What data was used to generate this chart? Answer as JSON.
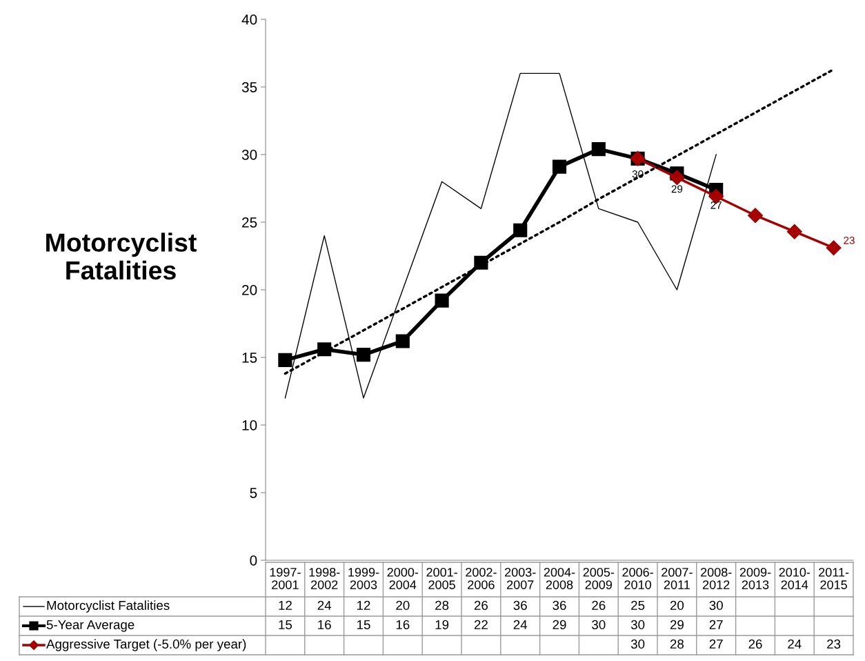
{
  "chart_data": {
    "type": "line",
    "title": "Motorcyclist Fatalities",
    "categories": [
      "1997-2001",
      "1998-2002",
      "1999-2003",
      "2000-2004",
      "2001-2005",
      "2002-2006",
      "2003-2007",
      "2004-2008",
      "2005-2009",
      "2006-2010",
      "2007-2011",
      "2008-2012",
      "2009-2013",
      "2010-2014",
      "2011-2015"
    ],
    "series": [
      {
        "name": "Motorcyclist Fatalities",
        "color": "#000000",
        "values": [
          12,
          24,
          12,
          20,
          28,
          26,
          36,
          36,
          26,
          25,
          20,
          30,
          null,
          null,
          null
        ],
        "value_labels": [
          "12",
          "24",
          "12",
          "20",
          "28",
          "26",
          "36",
          "36",
          "26",
          "25",
          "20",
          "30",
          null,
          null,
          null
        ]
      },
      {
        "name": "5-Year Average",
        "color": "#000000",
        "marker": "square",
        "values": [
          14.8,
          15.6,
          15.2,
          16.2,
          19.2,
          22.0,
          24.4,
          29.1,
          30.4,
          29.7,
          28.6,
          27.4,
          null,
          null,
          null
        ],
        "value_labels": [
          "15",
          "16",
          "15",
          "16",
          "19",
          "22",
          "24",
          "29",
          "30",
          "30",
          "29",
          "27",
          null,
          null,
          null
        ]
      },
      {
        "name": "Aggressive Target (-5.0% per year)",
        "color": "#a50000",
        "marker": "diamond",
        "values": [
          null,
          null,
          null,
          null,
          null,
          null,
          null,
          null,
          null,
          29.7,
          28.3,
          26.9,
          25.5,
          24.3,
          23.1
        ],
        "value_labels": [
          null,
          null,
          null,
          null,
          null,
          null,
          null,
          null,
          null,
          "30",
          "28",
          "27",
          "26",
          "24",
          "23"
        ]
      },
      {
        "color": "#000000",
        "marker": "none",
        "line_style": "dotted",
        "values": [
          13.8,
          15.4,
          17.0,
          18.6,
          20.2,
          21.8,
          23.4,
          25.0,
          26.7,
          28.3,
          29.9,
          31.5,
          33.1,
          34.7,
          36.3
        ]
      }
    ],
    "annotations": [
      {
        "text": "30",
        "x": "2006-2010",
        "y": 29.7
      },
      {
        "text": "29",
        "x": "2007-2011",
        "y": 28.6
      },
      {
        "text": "27",
        "x": "2008-2012",
        "y": 27.4
      },
      {
        "text": "23",
        "x": "2011-2015",
        "y": 23.1
      }
    ],
    "ylim": [
      0,
      40
    ],
    "yticks": [
      0,
      5,
      10,
      15,
      20,
      25,
      30,
      35,
      40
    ],
    "grid": false,
    "legend": "bottom"
  }
}
